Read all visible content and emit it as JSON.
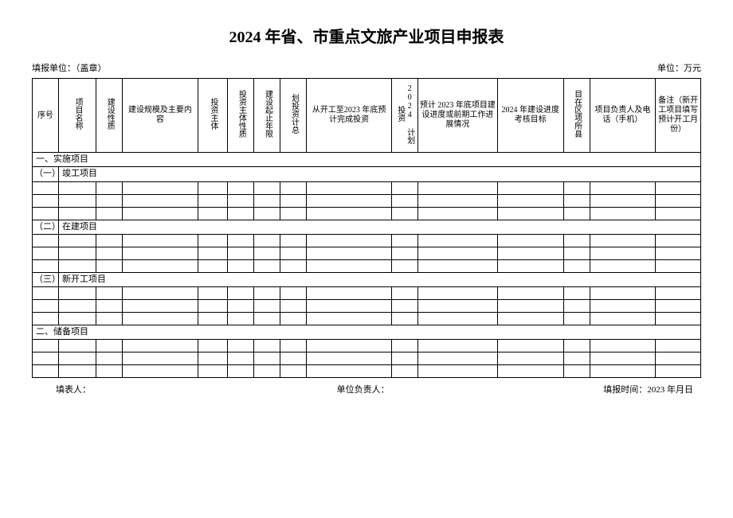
{
  "title": "2024 年省、市重点文旅产业项目申报表",
  "header": {
    "left": "填报单位：（盖章）",
    "right": "单位：万元"
  },
  "columns": {
    "c1": "序号",
    "c2": "项目名称",
    "c3": "建设性质",
    "c4": "建设规模及主要内容",
    "c5": "投资主体",
    "c6": "投资主体性质",
    "c7": "建设起止年限",
    "c8": "划投资计总",
    "c9": "从开工至2023 年底预计完成投资",
    "c10": "2024 计划投资",
    "c11": "预计 2023 年底项目建设进度或前期工作进展情况",
    "c12": "2024 年建设进度考核目标",
    "c13": "目在区项所县",
    "c14": "项目负责人及电话（手机）",
    "c15": "备注（新开工项目填写预计开工月份）"
  },
  "sections": {
    "s1": "一、实施项目",
    "s1a_num": "（一）",
    "s1a": "竣工项目",
    "s1b_num": "（二）",
    "s1b": "在建项目",
    "s1c_num": "（三）",
    "s1c": "新开工项目",
    "s2": "二、储备项目"
  },
  "footer": {
    "left": "填表人：",
    "mid": "单位负责人：",
    "right": "填报时间：2023 年月日"
  },
  "style": {
    "bg": "#ffffff",
    "border": "#000000",
    "text": "#000000",
    "title_fontsize": 20,
    "body_fontsize": 11
  }
}
